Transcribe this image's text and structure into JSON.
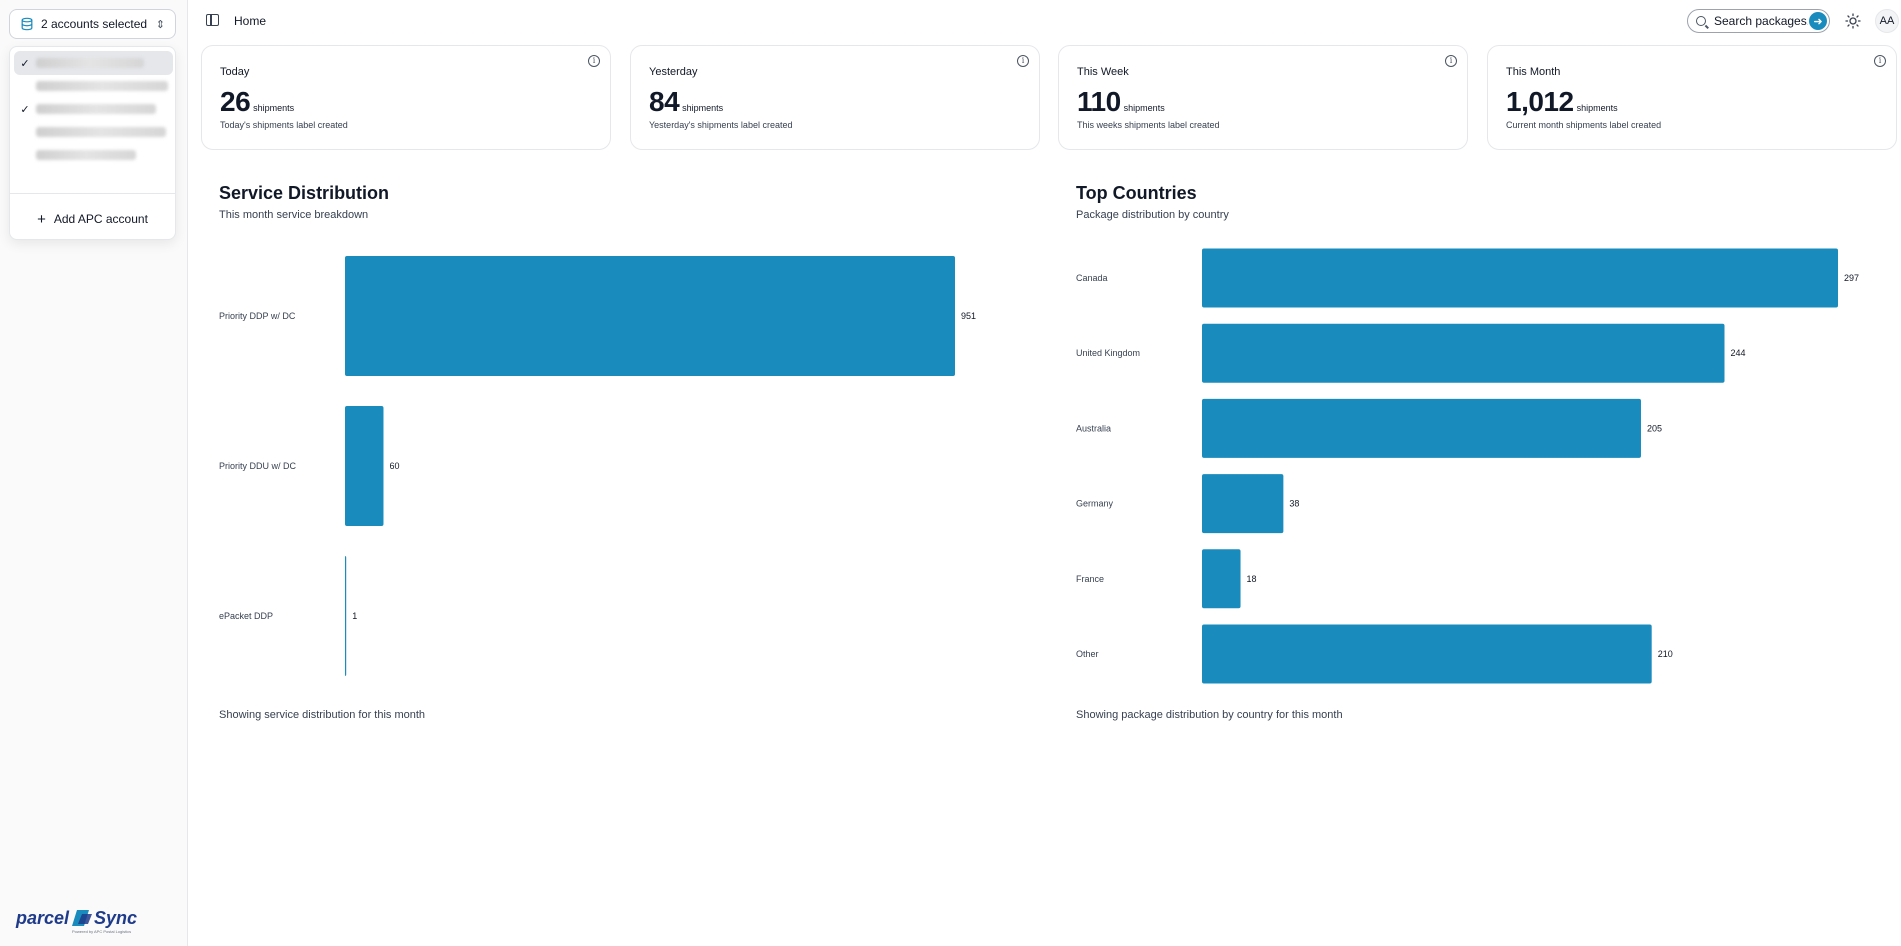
{
  "sidebar": {
    "account_selector": {
      "label": "2 accounts selected"
    },
    "account_menu": {
      "items": [
        {
          "checked": true,
          "active": true
        },
        {
          "checked": false,
          "active": false
        },
        {
          "checked": true,
          "active": false
        },
        {
          "checked": false,
          "active": false
        },
        {
          "checked": false,
          "active": false
        }
      ],
      "add_label": "Add APC account"
    },
    "logo": {
      "name": "parcelSync",
      "tagline": "Powered by APC Postal Logistics"
    }
  },
  "header": {
    "breadcrumb": "Home",
    "search": {
      "placeholder": "Search packages..."
    },
    "avatar_initials": "AA"
  },
  "cards": [
    {
      "title": "Today",
      "value": "26",
      "unit": "shipments",
      "description": "Today's shipments label created"
    },
    {
      "title": "Yesterday",
      "value": "84",
      "unit": "shipments",
      "description": "Yesterday's shipments label created"
    },
    {
      "title": "This Week",
      "value": "110",
      "unit": "shipments",
      "description": "This weeks shipments label created"
    },
    {
      "title": "This Month",
      "value": "1,012",
      "unit": "shipments",
      "description": "Current month shipments label created"
    }
  ],
  "service_section": {
    "title": "Service Distribution",
    "subtitle": "This month service breakdown",
    "footer": "Showing service distribution for this month"
  },
  "countries_section": {
    "title": "Top Countries",
    "subtitle": "Package distribution by country",
    "footer": "Showing package distribution by country for this month"
  },
  "colors": {
    "accent": "#1a8bbd"
  },
  "chart_data": [
    {
      "type": "bar",
      "orientation": "horizontal",
      "title": "Service Distribution",
      "categories": [
        "Priority DDP w/ DC",
        "Priority DDU w/ DC",
        "ePacket DDP"
      ],
      "values": [
        951,
        60,
        1
      ],
      "grid": false,
      "data_labels": true
    },
    {
      "type": "bar",
      "orientation": "horizontal",
      "title": "Top Countries",
      "categories": [
        "Canada",
        "United Kingdom",
        "Australia",
        "Germany",
        "France",
        "Other"
      ],
      "values": [
        297,
        244,
        205,
        38,
        18,
        210
      ],
      "grid": false,
      "data_labels": true
    }
  ]
}
